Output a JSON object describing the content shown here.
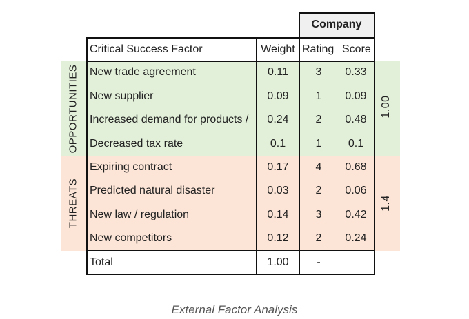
{
  "table": {
    "company_header": "Company",
    "headers": {
      "factor": "Critical Success Factor",
      "weight": "Weight",
      "rating": "Rating",
      "score": "Score"
    },
    "groups": [
      {
        "label": "OPPORTUNITIES",
        "total_score": "1.00",
        "color": "#e2f0d9",
        "rows": [
          {
            "factor": "New trade agreement",
            "weight": "0.11",
            "rating": "3",
            "score": "0.33"
          },
          {
            "factor": "New supplier",
            "weight": "0.09",
            "rating": "1",
            "score": "0.09"
          },
          {
            "factor": "Increased demand for products /",
            "weight": "0.24",
            "rating": "2",
            "score": "0.48"
          },
          {
            "factor": "Decreased tax rate",
            "weight": "0.1",
            "rating": "1",
            "score": "0.1"
          }
        ]
      },
      {
        "label": "THREATS",
        "total_score": "1.4",
        "color": "#fce4d6",
        "rows": [
          {
            "factor": "Expiring contract",
            "weight": "0.17",
            "rating": "4",
            "score": "0.68"
          },
          {
            "factor": "Predicted natural disaster",
            "weight": "0.03",
            "rating": "2",
            "score": "0.06"
          },
          {
            "factor": "New law / regulation",
            "weight": "0.14",
            "rating": "3",
            "score": "0.42"
          },
          {
            "factor": "New competitors",
            "weight": "0.12",
            "rating": "2",
            "score": "0.24"
          }
        ]
      }
    ],
    "total": {
      "label": "Total",
      "weight": "1.00",
      "rating": "-"
    }
  },
  "caption": "External Factor Analysis"
}
